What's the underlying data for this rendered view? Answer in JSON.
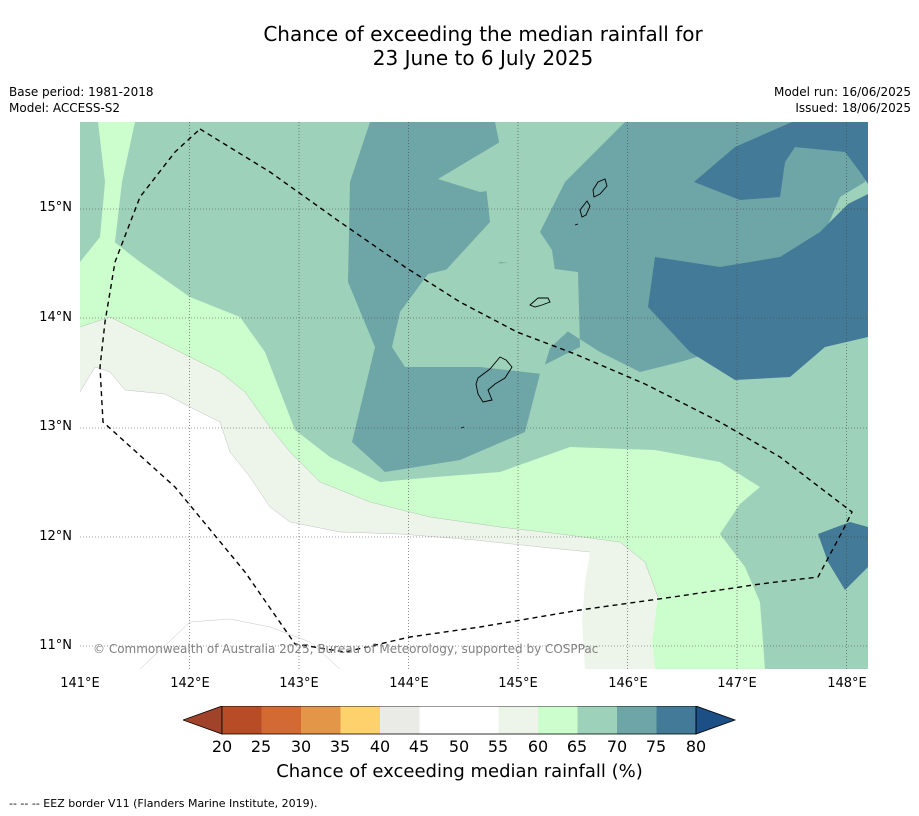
{
  "title_line1": "Chance of exceeding the median rainfall for",
  "title_line2": "23 June to 6 July 2025",
  "base_period": "Base period: 1981-2018",
  "model": "Model: ACCESS-S2",
  "model_run": "Model run: 16/06/2025",
  "issued": "Issued: 18/06/2025",
  "lat_labels": [
    "15°N",
    "14°N",
    "13°N",
    "12°N",
    "11°N"
  ],
  "lon_labels": [
    "141°E",
    "142°E",
    "143°E",
    "144°E",
    "145°E",
    "146°E",
    "147°E",
    "148°E"
  ],
  "copyright": "© Commonwealth of Australia 2025, Bureau of Meteorology, supported by COSPPac",
  "colorbar": {
    "ticks": [
      "20",
      "25",
      "30",
      "35",
      "40",
      "45",
      "50",
      "55",
      "60",
      "65",
      "70",
      "75",
      "80"
    ],
    "title": "Chance of exceeding median rainfall (%)",
    "colors": [
      "#a0432a",
      "#b84c27",
      "#d36a34",
      "#e39548",
      "#fdd16c",
      "#eaeae6",
      "#ffffff",
      "#ffffff",
      "#edf5eb",
      "#ccfdcc",
      "#9dd1b9",
      "#6ea5a6",
      "#437a97",
      "#1c4f86"
    ]
  },
  "legend_note": "--  --  -- EEZ border V11 (Flanders Marine Institute, 2019)."
}
